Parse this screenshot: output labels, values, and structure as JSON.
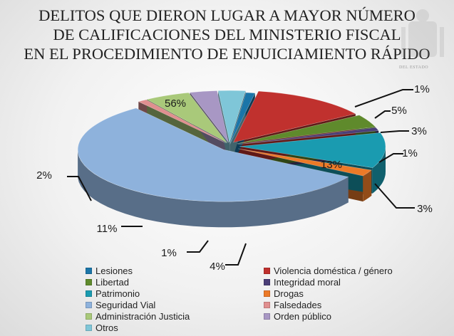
{
  "chart_data": {
    "type": "pie",
    "title_lines": [
      "DELITOS QUE DIERON LUGAR A MAYOR NÚMERO",
      "DE CALIFICACIONES DEL MINISTERIO FISCAL",
      "EN EL PROCEDIMIENTO DE ENJUICIAMIENTO RÁPIDO"
    ],
    "legend_position": "bottom",
    "slices": [
      {
        "name": "Lesiones",
        "value": 1,
        "label": "1%",
        "color": "#1b75a8"
      },
      {
        "name": "Violencia doméstica / género",
        "value": 13,
        "label": "13%",
        "color": "#c0312e"
      },
      {
        "name": "Libertad",
        "value": 4,
        "label": "4%",
        "color": "#5f8a2c"
      },
      {
        "name": "Integridad moral",
        "value": 1,
        "label": "1%",
        "color": "#4b3f78"
      },
      {
        "name": "Patrimonio",
        "value": 11,
        "label": "11%",
        "color": "#1a9bb0"
      },
      {
        "name": "Drogas",
        "value": 2,
        "label": "2%",
        "color": "#ec7a28"
      },
      {
        "name": "Seguridad Vial",
        "value": 56,
        "label": "56%",
        "color": "#8eb2dc"
      },
      {
        "name": "Falsedades",
        "value": 1,
        "label": "1%",
        "color": "#e08f8f"
      },
      {
        "name": "Administración Justicia",
        "value": 5,
        "label": "5%",
        "color": "#a9c97a"
      },
      {
        "name": "Orden público",
        "value": 3,
        "label": "3%",
        "color": "#a897c4"
      },
      {
        "name": "Otros",
        "value": 3,
        "label": "3%",
        "color": "#7fc6d8"
      }
    ]
  },
  "crest": {
    "caption": "DEL ESTADO"
  }
}
